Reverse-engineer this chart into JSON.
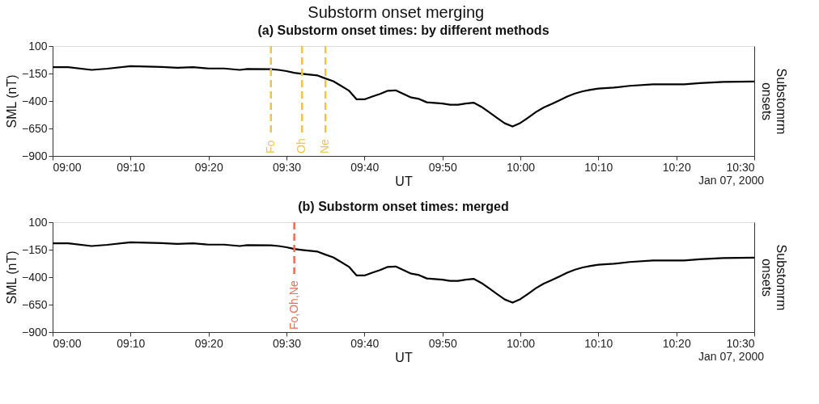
{
  "chart_data": [
    {
      "type": "line",
      "title": "(a) Substorm onset times: by different methods",
      "xlabel": "UT",
      "ylabel": "SML (nT)",
      "y2label": "Substomrm onsets",
      "annotations": [
        "Substorm onset merging",
        {
          "text": "Jan 07, 2000"
        }
      ],
      "x": [
        "2000-01-07T09:00",
        "2000-01-07T09:02",
        "2000-01-07T09:05",
        "2000-01-07T09:07",
        "2000-01-07T09:10",
        "2000-01-07T09:14",
        "2000-01-07T09:16",
        "2000-01-07T09:18",
        "2000-01-07T09:20",
        "2000-01-07T09:22",
        "2000-01-07T09:24",
        "2000-01-07T09:25",
        "2000-01-07T09:28",
        "2000-01-07T09:29",
        "2000-01-07T09:30",
        "2000-01-07T09:31",
        "2000-01-07T09:32",
        "2000-01-07T09:34",
        "2000-01-07T09:35",
        "2000-01-07T09:36",
        "2000-01-07T09:37",
        "2000-01-07T09:38",
        "2000-01-07T09:39",
        "2000-01-07T09:40",
        "2000-01-07T09:41",
        "2000-01-07T09:42",
        "2000-01-07T09:43",
        "2000-01-07T09:44",
        "2000-01-07T09:45",
        "2000-01-07T09:46",
        "2000-01-07T09:47",
        "2000-01-07T09:48",
        "2000-01-07T09:49",
        "2000-01-07T09:50",
        "2000-01-07T09:51",
        "2000-01-07T09:52",
        "2000-01-07T09:53",
        "2000-01-07T09:54",
        "2000-01-07T09:55",
        "2000-01-07T09:56",
        "2000-01-07T09:57",
        "2000-01-07T09:58",
        "2000-01-07T09:59",
        "2000-01-07T10:00",
        "2000-01-07T10:01",
        "2000-01-07T10:02",
        "2000-01-07T10:03",
        "2000-01-07T10:04",
        "2000-01-07T10:05",
        "2000-01-07T10:06",
        "2000-01-07T10:07",
        "2000-01-07T10:08",
        "2000-01-07T10:09",
        "2000-01-07T10:10",
        "2000-01-07T10:12",
        "2000-01-07T10:14",
        "2000-01-07T10:17",
        "2000-01-07T10:21",
        "2000-01-07T10:23",
        "2000-01-07T10:26",
        "2000-01-07T10:30"
      ],
      "series": [
        {
          "color": "#000000",
          "values": [
            -92,
            -92,
            -117,
            -106,
            -83,
            -90,
            -97,
            -92,
            -104,
            -104,
            -117,
            -108,
            -110,
            -117,
            -128,
            -144,
            -153,
            -168,
            -195,
            -220,
            -262,
            -305,
            -385,
            -385,
            -359,
            -336,
            -307,
            -303,
            -336,
            -368,
            -381,
            -412,
            -417,
            -423,
            -434,
            -434,
            -423,
            -415,
            -453,
            -502,
            -553,
            -603,
            -632,
            -600,
            -551,
            -500,
            -459,
            -428,
            -394,
            -359,
            -332,
            -312,
            -298,
            -287,
            -278,
            -262,
            -249,
            -249,
            -238,
            -227,
            -223
          ]
        }
      ],
      "xlim": [
        "2000-01-07T09:00",
        "2000-01-07T10:30"
      ],
      "xticks": [
        {
          "value": "2000-01-07T09:00",
          "label": "09:00"
        },
        {
          "value": "2000-01-07T09:10",
          "label": "09:10"
        },
        {
          "value": "2000-01-07T09:20",
          "label": "09:20"
        },
        {
          "value": "2000-01-07T09:30",
          "label": "09:30"
        },
        {
          "value": "2000-01-07T09:40",
          "label": "09:40"
        },
        {
          "value": "2000-01-07T09:50",
          "label": "09:50"
        },
        {
          "value": "2000-01-07T10:00",
          "label": "10:00"
        },
        {
          "value": "2000-01-07T10:10",
          "label": "10:10"
        },
        {
          "value": "2000-01-07T10:20",
          "label": "10:20"
        },
        {
          "value": "2000-01-07T10:30",
          "label": "10:30"
        }
      ],
      "ylim": [
        -900,
        100
      ],
      "yticks": [
        -900,
        -650,
        -400,
        -150,
        100
      ],
      "ref_lines": [
        {
          "axis": "x",
          "value": "2000-01-07T09:28",
          "label": "Fo",
          "color": "#f2c14e",
          "line_style": "dashed"
        },
        {
          "axis": "x",
          "value": "2000-01-07T09:32",
          "label": "Oh",
          "color": "#f2c14e",
          "line_style": "dashed"
        },
        {
          "axis": "x",
          "value": "2000-01-07T09:35",
          "label": "Ne",
          "color": "#f2c14e",
          "line_style": "dashed"
        }
      ],
      "grid": false,
      "marker": "none",
      "line_style": "solid"
    },
    {
      "type": "line",
      "title": "(b) Substorm onset times: merged",
      "xlabel": "UT",
      "ylabel": "SML (nT)",
      "y2label": "Substomrm onsets",
      "annotations": [
        {
          "text": "Jan 07, 2000"
        }
      ],
      "x": [
        "2000-01-07T09:00",
        "2000-01-07T09:02",
        "2000-01-07T09:05",
        "2000-01-07T09:07",
        "2000-01-07T09:10",
        "2000-01-07T09:14",
        "2000-01-07T09:16",
        "2000-01-07T09:18",
        "2000-01-07T09:20",
        "2000-01-07T09:22",
        "2000-01-07T09:24",
        "2000-01-07T09:25",
        "2000-01-07T09:28",
        "2000-01-07T09:29",
        "2000-01-07T09:30",
        "2000-01-07T09:31",
        "2000-01-07T09:32",
        "2000-01-07T09:34",
        "2000-01-07T09:35",
        "2000-01-07T09:36",
        "2000-01-07T09:37",
        "2000-01-07T09:38",
        "2000-01-07T09:39",
        "2000-01-07T09:40",
        "2000-01-07T09:41",
        "2000-01-07T09:42",
        "2000-01-07T09:43",
        "2000-01-07T09:44",
        "2000-01-07T09:45",
        "2000-01-07T09:46",
        "2000-01-07T09:47",
        "2000-01-07T09:48",
        "2000-01-07T09:49",
        "2000-01-07T09:50",
        "2000-01-07T09:51",
        "2000-01-07T09:52",
        "2000-01-07T09:53",
        "2000-01-07T09:54",
        "2000-01-07T09:55",
        "2000-01-07T09:56",
        "2000-01-07T09:57",
        "2000-01-07T09:58",
        "2000-01-07T09:59",
        "2000-01-07T10:00",
        "2000-01-07T10:01",
        "2000-01-07T10:02",
        "2000-01-07T10:03",
        "2000-01-07T10:04",
        "2000-01-07T10:05",
        "2000-01-07T10:06",
        "2000-01-07T10:07",
        "2000-01-07T10:08",
        "2000-01-07T10:09",
        "2000-01-07T10:10",
        "2000-01-07T10:12",
        "2000-01-07T10:14",
        "2000-01-07T10:17",
        "2000-01-07T10:21",
        "2000-01-07T10:23",
        "2000-01-07T10:26",
        "2000-01-07T10:30"
      ],
      "series": [
        {
          "color": "#000000",
          "values": [
            -92,
            -92,
            -117,
            -106,
            -83,
            -90,
            -97,
            -92,
            -104,
            -104,
            -117,
            -108,
            -110,
            -117,
            -128,
            -144,
            -153,
            -168,
            -195,
            -220,
            -262,
            -305,
            -385,
            -385,
            -359,
            -336,
            -307,
            -303,
            -336,
            -368,
            -381,
            -412,
            -417,
            -423,
            -434,
            -434,
            -423,
            -415,
            -453,
            -502,
            -553,
            -603,
            -632,
            -600,
            -551,
            -500,
            -459,
            -428,
            -394,
            -359,
            -332,
            -312,
            -298,
            -287,
            -278,
            -262,
            -249,
            -249,
            -238,
            -227,
            -223
          ]
        }
      ],
      "xlim": [
        "2000-01-07T09:00",
        "2000-01-07T10:30"
      ],
      "xticks": [
        {
          "value": "2000-01-07T09:00",
          "label": "09:00"
        },
        {
          "value": "2000-01-07T09:10",
          "label": "09:10"
        },
        {
          "value": "2000-01-07T09:20",
          "label": "09:20"
        },
        {
          "value": "2000-01-07T09:30",
          "label": "09:30"
        },
        {
          "value": "2000-01-07T09:40",
          "label": "09:40"
        },
        {
          "value": "2000-01-07T09:50",
          "label": "09:50"
        },
        {
          "value": "2000-01-07T10:00",
          "label": "10:00"
        },
        {
          "value": "2000-01-07T10:10",
          "label": "10:10"
        },
        {
          "value": "2000-01-07T10:20",
          "label": "10:20"
        },
        {
          "value": "2000-01-07T10:30",
          "label": "10:30"
        }
      ],
      "ylim": [
        -900,
        100
      ],
      "yticks": [
        -900,
        -650,
        -400,
        -150,
        100
      ],
      "ref_lines": [
        {
          "axis": "x",
          "value": "2000-01-07T09:31",
          "label": "Fo,Oh,Ne",
          "color": "#f26b4f",
          "line_style": "dashed"
        }
      ],
      "grid": false,
      "marker": "none",
      "line_style": "solid"
    }
  ]
}
